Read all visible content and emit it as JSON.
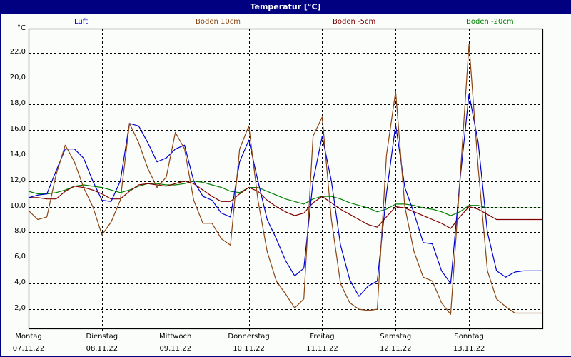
{
  "window": {
    "title": "Temperatur [°C]"
  },
  "colors": {
    "titlebar": "#000080",
    "luft": "#0000cc",
    "boden10": "#8b4513",
    "boden5": "#800000",
    "boden20": "#008000"
  },
  "chart_data": {
    "type": "line",
    "title": "Temperatur [°C]",
    "ylabel": "°C",
    "xlabel": "",
    "ylim": [
      0.5,
      23.9
    ],
    "grid": true,
    "legend_position": "top",
    "y_ticks": [
      "2,0",
      "4,0",
      "6,0",
      "8,0",
      "10,0",
      "12,0",
      "14,0",
      "16,0",
      "18,0",
      "20,0",
      "22,0"
    ],
    "x_ticks": [
      {
        "day": "Montag",
        "date": "07.11.22"
      },
      {
        "day": "Dienstag",
        "date": "08.11.22"
      },
      {
        "day": "Mittwoch",
        "date": "09.11.22"
      },
      {
        "day": "Donnerstag",
        "date": "10.11.22"
      },
      {
        "day": "Freitag",
        "date": "11.11.22"
      },
      {
        "day": "Samstag",
        "date": "12.11.22"
      },
      {
        "day": "Sonntag",
        "date": "13.11.22"
      }
    ],
    "x_interval_hours": 3,
    "series": [
      {
        "name": "Luft",
        "color": "#0000cc",
        "values": [
          10.7,
          10.9,
          11.0,
          12.8,
          14.5,
          14.5,
          13.8,
          12.0,
          10.5,
          10.4,
          12.0,
          16.5,
          16.3,
          15.0,
          13.5,
          13.8,
          14.5,
          14.8,
          12.0,
          10.8,
          10.5,
          9.5,
          9.2,
          13.5,
          15.2,
          12.0,
          9.0,
          7.5,
          5.8,
          4.6,
          5.2,
          12.0,
          15.5,
          12.0,
          7.0,
          4.3,
          3.0,
          3.8,
          4.2,
          11.0,
          16.4,
          11.5,
          9.5,
          7.2,
          7.1,
          5.0,
          4.0,
          12.0,
          18.8,
          15.0,
          8.0,
          5.0,
          4.5,
          4.9,
          5.0,
          5.0,
          5.0
        ]
      },
      {
        "name": "Boden 10cm",
        "color": "#8b4513",
        "values": [
          9.7,
          9.0,
          9.2,
          12.5,
          14.8,
          13.5,
          11.5,
          10.0,
          7.8,
          8.8,
          10.5,
          16.5,
          15.0,
          13.0,
          11.5,
          12.3,
          15.8,
          14.5,
          10.5,
          8.7,
          8.7,
          7.5,
          7.0,
          14.5,
          16.3,
          10.5,
          6.5,
          4.2,
          3.2,
          2.1,
          2.8,
          15.5,
          17.0,
          9.0,
          4.0,
          2.5,
          2.0,
          1.9,
          2.0,
          14.0,
          19.0,
          10.0,
          6.5,
          4.5,
          4.2,
          2.5,
          1.6,
          12.0,
          22.7,
          13.0,
          5.0,
          2.8,
          2.2,
          1.7,
          1.7,
          1.7,
          1.7
        ]
      },
      {
        "name": "Boden -5cm",
        "color": "#800000",
        "values": [
          10.7,
          10.7,
          10.6,
          10.6,
          11.2,
          11.6,
          11.5,
          11.3,
          11.0,
          10.6,
          10.6,
          11.2,
          11.7,
          11.8,
          11.7,
          11.6,
          11.8,
          12.0,
          11.8,
          11.3,
          10.8,
          10.4,
          10.4,
          11.0,
          11.5,
          11.2,
          10.5,
          10.0,
          9.6,
          9.3,
          9.5,
          10.3,
          10.8,
          10.3,
          9.8,
          9.4,
          9.0,
          8.6,
          8.4,
          9.2,
          10.0,
          9.9,
          9.6,
          9.3,
          9.0,
          8.7,
          8.3,
          9.2,
          10.0,
          9.8,
          9.4,
          9.0,
          9.0,
          9.0,
          9.0,
          9.0,
          9.0
        ]
      },
      {
        "name": "Boden -20cm",
        "color": "#008000",
        "values": [
          11.2,
          11.0,
          11.0,
          11.1,
          11.3,
          11.6,
          11.7,
          11.6,
          11.5,
          11.3,
          11.1,
          11.3,
          11.6,
          11.8,
          11.8,
          11.7,
          11.7,
          11.8,
          12.0,
          11.9,
          11.7,
          11.5,
          11.2,
          11.1,
          11.5,
          11.5,
          11.2,
          10.9,
          10.6,
          10.4,
          10.2,
          10.6,
          10.8,
          10.8,
          10.6,
          10.3,
          10.1,
          9.9,
          9.6,
          9.8,
          10.2,
          10.2,
          10.1,
          9.9,
          9.8,
          9.6,
          9.3,
          9.6,
          10.1,
          10.1,
          9.9,
          9.9,
          9.9,
          9.9,
          9.9,
          9.9,
          9.9
        ]
      }
    ]
  },
  "legend": [
    {
      "label": "Luft",
      "color": "#0000cc"
    },
    {
      "label": "Boden 10cm",
      "color": "#8b4513"
    },
    {
      "label": "Boden -5cm",
      "color": "#800000"
    },
    {
      "label": "Boden -20cm",
      "color": "#008000"
    }
  ]
}
